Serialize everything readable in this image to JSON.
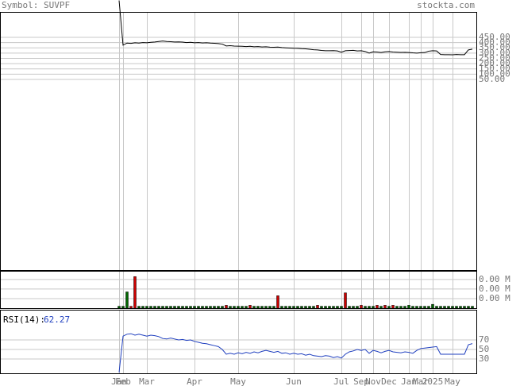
{
  "header": {
    "symbol": "Symbol: SUVPF",
    "site": "stockta.com"
  },
  "chart_data": {
    "type": "stock",
    "categories": [
      "Jan",
      "Feb",
      null,
      null,
      null,
      null,
      null,
      "Mar",
      null,
      null,
      null,
      null,
      null,
      null,
      null,
      null,
      null,
      null,
      null,
      "Apr",
      null,
      null,
      null,
      null,
      null,
      null,
      null,
      null,
      null,
      null,
      "May",
      null,
      null,
      null,
      null,
      null,
      null,
      null,
      null,
      null,
      null,
      null,
      null,
      null,
      "Jun",
      null,
      null,
      null,
      null,
      null,
      null,
      null,
      null,
      null,
      null,
      null,
      "Jul",
      null,
      null,
      null,
      null,
      "Sep",
      null,
      null,
      "Nov",
      null,
      null,
      null,
      "Dec",
      null,
      null,
      null,
      null,
      "Jan",
      null,
      null,
      "Mar",
      null,
      null,
      "2025",
      null,
      null,
      null,
      null,
      "May",
      null,
      null,
      null,
      null,
      null
    ],
    "price": {
      "color": "#000000",
      "ylim": [
        -1761,
        691
      ],
      "yticks": [
        {
          "value": 50,
          "label": "50.00"
        },
        {
          "value": 100,
          "label": "100.00"
        },
        {
          "value": 150,
          "label": "150.00"
        },
        {
          "value": 200,
          "label": "200.00"
        },
        {
          "value": 250,
          "label": "250.00"
        },
        {
          "value": 300,
          "label": "300.00"
        },
        {
          "value": 350,
          "label": "350.00"
        },
        {
          "value": 400,
          "label": "400.00"
        },
        {
          "value": 450,
          "label": "450.00"
        }
      ],
      "values": [
        800,
        375,
        395,
        392,
        398,
        395,
        400,
        398,
        402,
        405,
        410,
        415,
        410,
        408,
        405,
        406,
        404,
        400,
        402,
        398,
        400,
        396,
        398,
        395,
        393,
        390,
        385,
        368,
        370,
        367,
        366,
        365,
        362,
        365,
        360,
        362,
        358,
        360,
        356,
        355,
        357,
        352,
        350,
        348,
        346,
        345,
        342,
        340,
        336,
        332,
        330,
        325,
        322,
        322,
        323,
        320,
        308,
        322,
        324,
        326,
        320,
        322,
        315,
        300,
        312,
        310,
        305,
        312,
        315,
        310,
        308,
        306,
        307,
        305,
        302,
        300,
        303,
        305,
        318,
        322,
        320,
        286,
        285,
        285,
        284,
        286,
        285,
        285,
        330,
        337
      ]
    },
    "volume": {
      "ylim": [
        0,
        0.0039
      ],
      "yticks": [
        {
          "value": 0.001,
          "label": "0.00 M"
        },
        {
          "value": 0.002,
          "label": "0.00 M"
        },
        {
          "value": 0.003,
          "label": "0.00 M"
        }
      ],
      "values": [
        0.0002,
        0.0002,
        0.0017,
        0.0002,
        0.0033,
        0.0002,
        0.0002,
        0.0002,
        0.0002,
        0.0002,
        0.0002,
        0.0002,
        0.0002,
        0.0002,
        0.0002,
        0.0002,
        0.0002,
        0.0002,
        0.0002,
        0.0002,
        0.0002,
        0.0002,
        0.0002,
        0.0002,
        0.0002,
        0.0002,
        0.0002,
        0.0003,
        0.0002,
        0.0002,
        0.0002,
        0.0002,
        0.0002,
        0.0003,
        0.0002,
        0.0002,
        0.0002,
        0.0002,
        0.0002,
        0.0002,
        0.0013,
        0.0002,
        0.0002,
        0.0002,
        0.0002,
        0.0002,
        0.0002,
        0.0002,
        0.0002,
        0.0002,
        0.0003,
        0.0002,
        0.0002,
        0.0002,
        0.0002,
        0.0002,
        0.0002,
        0.0016,
        0.0002,
        0.0002,
        0.0002,
        0.0003,
        0.0002,
        0.0002,
        0.0002,
        0.0003,
        0.0002,
        0.0003,
        0.0002,
        0.0003,
        0.0002,
        0.0002,
        0.0002,
        0.0003,
        0.0002,
        0.0002,
        0.0002,
        0.0002,
        0.0002,
        0.0004,
        0.0002,
        0.0002,
        0.0002,
        0.0002,
        0.0002,
        0.0002,
        0.0002,
        0.0002,
        0.0002,
        0.0002
      ],
      "colors": [
        "#006600",
        "#006600",
        "#006600",
        "#cc0000",
        "#cc0000",
        "#006600",
        "#006600",
        "#006600",
        "#006600",
        "#006600",
        "#006600",
        "#006600",
        "#006600",
        "#006600",
        "#006600",
        "#006600",
        "#006600",
        "#006600",
        "#006600",
        "#006600",
        "#006600",
        "#006600",
        "#006600",
        "#006600",
        "#006600",
        "#006600",
        "#006600",
        "#cc0000",
        "#006600",
        "#006600",
        "#006600",
        "#006600",
        "#006600",
        "#cc0000",
        "#006600",
        "#006600",
        "#006600",
        "#006600",
        "#006600",
        "#006600",
        "#cc0000",
        "#006600",
        "#006600",
        "#006600",
        "#006600",
        "#006600",
        "#006600",
        "#006600",
        "#006600",
        "#006600",
        "#cc0000",
        "#006600",
        "#006600",
        "#006600",
        "#006600",
        "#006600",
        "#006600",
        "#cc0000",
        "#006600",
        "#006600",
        "#006600",
        "#cc0000",
        "#006600",
        "#006600",
        "#006600",
        "#cc0000",
        "#006600",
        "#cc0000",
        "#006600",
        "#cc0000",
        "#006600",
        "#006600",
        "#006600",
        "#006600",
        "#006600",
        "#006600",
        "#006600",
        "#006600",
        "#006600",
        "#006600",
        "#006600",
        "#006600",
        "#006600",
        "#006600",
        "#006600",
        "#006600",
        "#006600",
        "#006600",
        "#006600",
        "#006600"
      ]
    },
    "rsi": {
      "label": "RSI(14):",
      "color": "#1f3fbf",
      "ylim": [
        0,
        100
      ],
      "yticks": [
        30,
        50,
        70
      ],
      "values": [
        2,
        78,
        82,
        83,
        80,
        82,
        80,
        78,
        80,
        79,
        77,
        73,
        72,
        74,
        72,
        70,
        71,
        69,
        70,
        67,
        65,
        63,
        62,
        60,
        58,
        56,
        50,
        40,
        42,
        40,
        43,
        41,
        44,
        42,
        45,
        43,
        46,
        48,
        46,
        44,
        46,
        42,
        43,
        40,
        42,
        40,
        41,
        38,
        40,
        37,
        36,
        35,
        37,
        36,
        33,
        35,
        32,
        40,
        45,
        47,
        50,
        48,
        50,
        42,
        48,
        46,
        43,
        46,
        48,
        45,
        44,
        43,
        45,
        44,
        42,
        48,
        52,
        53,
        54,
        55,
        56,
        40,
        40,
        40,
        40,
        40,
        40,
        40,
        60,
        62.27
      ]
    }
  }
}
